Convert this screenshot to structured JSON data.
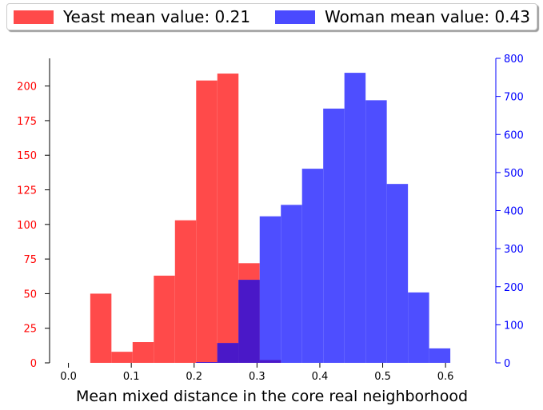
{
  "chart_data": {
    "type": "bar",
    "title": "",
    "xlabel": "Mean mixed distance in the core real neighborhood",
    "xlim": [
      -0.03,
      0.68
    ],
    "x_ticks": [
      0.0,
      0.1,
      0.2,
      0.3,
      0.4,
      0.5,
      0.6
    ],
    "x_tick_labels": [
      "0.0",
      "0.1",
      "0.2",
      "0.3",
      "0.4",
      "0.5",
      "0.6"
    ],
    "legend_placement": "top",
    "grid": false,
    "axes": {
      "left": {
        "ylim": [
          0,
          220
        ],
        "ticks": [
          0,
          25,
          50,
          75,
          100,
          125,
          150,
          175,
          200
        ],
        "tick_labels": [
          "0",
          "25",
          "50",
          "75",
          "100",
          "125",
          "150",
          "175",
          "200"
        ],
        "color": "#ff0000"
      },
      "right": {
        "ylim": [
          0,
          800
        ],
        "ticks": [
          0,
          100,
          200,
          300,
          400,
          500,
          600,
          700,
          800
        ],
        "tick_labels": [
          "0",
          "100",
          "200",
          "300",
          "400",
          "500",
          "600",
          "700",
          "800"
        ],
        "color": "#0000ff"
      }
    },
    "series": [
      {
        "name": "Yeast mean value: 0.21",
        "axis": "left",
        "color": "#ff4a4a",
        "bin_width": 0.0337,
        "bins": [
          {
            "x0": 0.0347,
            "value": 50
          },
          {
            "x0": 0.0684,
            "value": 8
          },
          {
            "x0": 0.1021,
            "value": 15
          },
          {
            "x0": 0.1358,
            "value": 63
          },
          {
            "x0": 0.1695,
            "value": 103
          },
          {
            "x0": 0.2032,
            "value": 204
          },
          {
            "x0": 0.2369,
            "value": 209
          },
          {
            "x0": 0.2706,
            "value": 72
          },
          {
            "x0": 0.3043,
            "value": 2
          }
        ]
      },
      {
        "name": "Woman mean value: 0.43",
        "axis": "right",
        "color": "#4a4aff",
        "bin_width": 0.0337,
        "bins": [
          {
            "x0": 0.2032,
            "value": 2
          },
          {
            "x0": 0.2369,
            "value": 52
          },
          {
            "x0": 0.2706,
            "value": 218
          },
          {
            "x0": 0.3043,
            "value": 385
          },
          {
            "x0": 0.338,
            "value": 415
          },
          {
            "x0": 0.3717,
            "value": 510
          },
          {
            "x0": 0.4054,
            "value": 668
          },
          {
            "x0": 0.4391,
            "value": 762
          },
          {
            "x0": 0.4728,
            "value": 690
          },
          {
            "x0": 0.5065,
            "value": 470
          },
          {
            "x0": 0.5402,
            "value": 185
          },
          {
            "x0": 0.5739,
            "value": 38
          }
        ]
      }
    ]
  }
}
